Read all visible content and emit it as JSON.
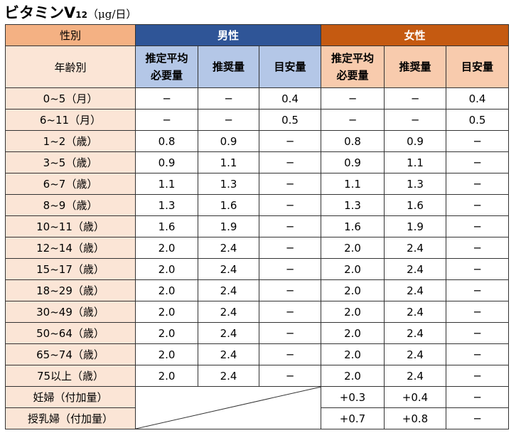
{
  "title": {
    "main": "ビタミンV",
    "subscript": "12",
    "unit": "（μg/日）"
  },
  "header": {
    "sex_label": "性別",
    "age_label": "年齢別",
    "male": "男性",
    "female": "女性",
    "cols": [
      "推定平均必要量",
      "推奨量",
      "目安量"
    ]
  },
  "rows": [
    {
      "label": "0~5（月）",
      "m": [
        "─",
        "─",
        "0.4"
      ],
      "f": [
        "─",
        "─",
        "0.4"
      ]
    },
    {
      "label": "6~11（月）",
      "m": [
        "─",
        "─",
        "0.5"
      ],
      "f": [
        "─",
        "─",
        "0.5"
      ]
    },
    {
      "label": "1~2（歳）",
      "m": [
        "0.8",
        "0.9",
        "─"
      ],
      "f": [
        "0.8",
        "0.9",
        "─"
      ]
    },
    {
      "label": "3~5（歳）",
      "m": [
        "0.9",
        "1.1",
        "─"
      ],
      "f": [
        "0.9",
        "1.1",
        "─"
      ]
    },
    {
      "label": "6~7（歳）",
      "m": [
        "1.1",
        "1.3",
        "─"
      ],
      "f": [
        "1.1",
        "1.3",
        "─"
      ]
    },
    {
      "label": "8~9（歳）",
      "m": [
        "1.3",
        "1.6",
        "─"
      ],
      "f": [
        "1.3",
        "1.6",
        "─"
      ]
    },
    {
      "label": "10~11（歳）",
      "m": [
        "1.6",
        "1.9",
        "─"
      ],
      "f": [
        "1.6",
        "1.9",
        "─"
      ]
    },
    {
      "label": "12~14（歳）",
      "m": [
        "2.0",
        "2.4",
        "─"
      ],
      "f": [
        "2.0",
        "2.4",
        "─"
      ]
    },
    {
      "label": "15~17（歳）",
      "m": [
        "2.0",
        "2.4",
        "─"
      ],
      "f": [
        "2.0",
        "2.4",
        "─"
      ]
    },
    {
      "label": "18~29（歳）",
      "m": [
        "2.0",
        "2.4",
        "─"
      ],
      "f": [
        "2.0",
        "2.4",
        "─"
      ]
    },
    {
      "label": "30~49（歳）",
      "m": [
        "2.0",
        "2.4",
        "─"
      ],
      "f": [
        "2.0",
        "2.4",
        "─"
      ]
    },
    {
      "label": "50~64（歳）",
      "m": [
        "2.0",
        "2.4",
        "─"
      ],
      "f": [
        "2.0",
        "2.4",
        "─"
      ]
    },
    {
      "label": "65~74（歳）",
      "m": [
        "2.0",
        "2.4",
        "─"
      ],
      "f": [
        "2.0",
        "2.4",
        "─"
      ]
    },
    {
      "label": "75以上（歳）",
      "m": [
        "2.0",
        "2.4",
        "─"
      ],
      "f": [
        "2.0",
        "2.4",
        "─"
      ]
    }
  ],
  "extra_rows": [
    {
      "label": "妊婦（付加量）",
      "f": [
        "+0.3",
        "+0.4",
        "─"
      ]
    },
    {
      "label": "授乳婦（付加量）",
      "f": [
        "+0.7",
        "+0.8",
        "─"
      ]
    }
  ]
}
